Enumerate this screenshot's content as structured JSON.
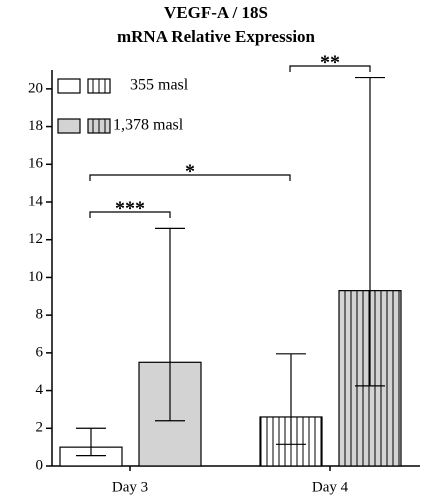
{
  "chart_data": {
    "type": "bar",
    "title": [
      "VEGF-A / 18S",
      "mRNA Relative Expression"
    ],
    "categories": [
      "Day 3",
      "Day 4"
    ],
    "series": [
      {
        "name": "355 masl",
        "color": "#ffffff",
        "values": [
          1.0,
          2.6
        ],
        "error_low": [
          0.55,
          1.15
        ],
        "error_high": [
          2.0,
          5.95
        ]
      },
      {
        "name": "1,378 masl",
        "color": "#d3d3d3",
        "values": [
          5.5,
          9.3
        ],
        "error_low": [
          2.4,
          4.25
        ],
        "error_high": [
          12.6,
          20.6
        ]
      }
    ],
    "hatch": [
      false,
      true
    ],
    "annotations": [
      "***",
      "*",
      "**"
    ],
    "ylim": [
      0,
      21
    ],
    "yticks": [
      0,
      2,
      4,
      6,
      8,
      10,
      12,
      14,
      16,
      18,
      20
    ],
    "grid": false,
    "legend": "top-left"
  }
}
